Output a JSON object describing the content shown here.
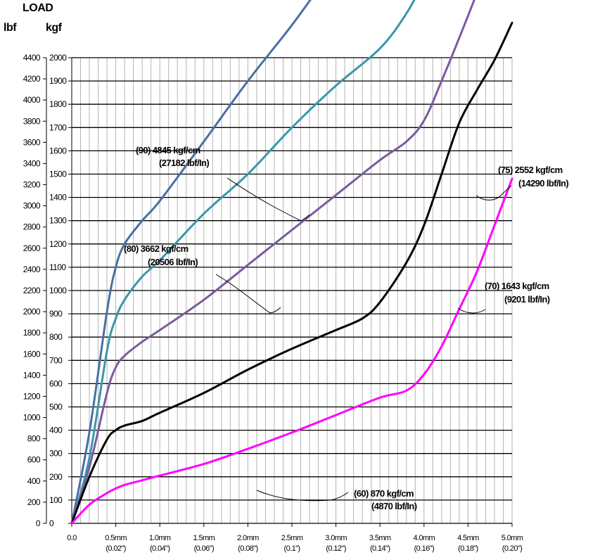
{
  "chart_data": {
    "type": "line",
    "title": "LOAD",
    "ylabel_left": "lbf",
    "ylabel_right": "kgf",
    "xlim": [
      0,
      5.0
    ],
    "ylim_kgf": [
      0,
      2000
    ],
    "ylim_lbf": [
      0,
      4400
    ],
    "grid": true,
    "x_ticks": [
      {
        "value": 0.0,
        "label": "0.0",
        "label2": ""
      },
      {
        "value": 0.5,
        "label": "0.5mm",
        "label2": "(0.02\")"
      },
      {
        "value": 1.0,
        "label": "1.0mm",
        "label2": "(0.04\")"
      },
      {
        "value": 1.5,
        "label": "1.5mm",
        "label2": "(0.06\")"
      },
      {
        "value": 2.0,
        "label": "2.0mm",
        "label2": "(0.08\")"
      },
      {
        "value": 2.5,
        "label": "2.5mm",
        "label2": "(0.1\")"
      },
      {
        "value": 3.0,
        "label": "3.0mm",
        "label2": "(0.12\")"
      },
      {
        "value": 3.5,
        "label": "3.5mm",
        "label2": "(0.14\")"
      },
      {
        "value": 4.0,
        "label": "4.0mm",
        "label2": "(0.16\")"
      },
      {
        "value": 4.5,
        "label": "4.5mm",
        "label2": "(0.18\")"
      },
      {
        "value": 5.0,
        "label": "5.0mm",
        "label2": "(0.20\")"
      }
    ],
    "y_ticks_kgf": [
      0,
      100,
      200,
      300,
      400,
      500,
      600,
      700,
      800,
      900,
      1000,
      1100,
      1200,
      1300,
      1400,
      1500,
      1600,
      1700,
      1800,
      1900,
      2000
    ],
    "y_ticks_lbf": [
      0,
      200,
      400,
      600,
      800,
      1000,
      1200,
      1400,
      1600,
      1800,
      2000,
      2200,
      2400,
      2600,
      2800,
      3000,
      3200,
      3400,
      3600,
      3800,
      4000,
      4200,
      4400
    ],
    "series": [
      {
        "name": "(90)",
        "color": "#4a6fa5",
        "x": [
          0,
          0.2,
          0.4,
          0.5,
          0.6,
          0.8,
          1.0,
          1.5,
          2.0,
          2.5,
          3.0,
          3.5,
          3.8,
          4.0,
          4.27
        ],
        "y": [
          0,
          390,
          910,
          1100,
          1200,
          1300,
          1385,
          1640,
          1900,
          2140,
          2400,
          2640,
          2790,
          2930,
          3200
        ]
      },
      {
        "name": "(80)",
        "color": "#3a97a8",
        "x": [
          0,
          0.2,
          0.4,
          0.5,
          0.6,
          0.8,
          1.0,
          1.5,
          2.0,
          2.5,
          3.0,
          3.5,
          3.8,
          4.0,
          4.2,
          4.5,
          4.77
        ],
        "y": [
          0,
          280,
          740,
          880,
          960,
          1060,
          1130,
          1330,
          1500,
          1700,
          1880,
          2040,
          2190,
          2330,
          2480,
          2700,
          2960
        ]
      },
      {
        "name": "(75)",
        "color": "#7c5aa0",
        "x": [
          0,
          0.2,
          0.4,
          0.5,
          0.6,
          0.8,
          1.0,
          1.5,
          2.0,
          2.5,
          3.0,
          3.5,
          3.8,
          4.0,
          4.2,
          4.5,
          4.8,
          5.0
        ],
        "y": [
          0,
          240,
          560,
          670,
          720,
          780,
          830,
          960,
          1110,
          1260,
          1410,
          1560,
          1640,
          1730,
          1900,
          2180,
          2470,
          2650
        ]
      },
      {
        "name": "(70)",
        "color": "#000000",
        "x": [
          0,
          0.2,
          0.4,
          0.5,
          0.6,
          0.8,
          1.0,
          1.5,
          2.0,
          2.5,
          3.0,
          3.3,
          3.5,
          3.8,
          4.0,
          4.2,
          4.4,
          4.6,
          4.8,
          5.0
        ],
        "y": [
          0,
          200,
          360,
          400,
          420,
          440,
          475,
          560,
          660,
          750,
          830,
          880,
          950,
          1120,
          1280,
          1500,
          1720,
          1860,
          1990,
          2150
        ]
      },
      {
        "name": "(60)",
        "color": "#ff00ff",
        "x": [
          0,
          0.2,
          0.4,
          0.5,
          0.6,
          0.8,
          1.0,
          1.5,
          2.0,
          2.5,
          3.0,
          3.5,
          3.8,
          4.0,
          4.2,
          4.4,
          4.6,
          4.8,
          5.0
        ],
        "y": [
          0,
          80,
          130,
          150,
          165,
          185,
          205,
          255,
          320,
          390,
          465,
          540,
          570,
          640,
          760,
          920,
          1080,
          1280,
          1480
        ]
      }
    ],
    "annotations": [
      {
        "line1": "(90) 4845 kgf/cm",
        "line2": "(27182 lbf/In)"
      },
      {
        "line1": "(80) 3662 kgf/cm",
        "line2": "(20506 lbf/In)"
      },
      {
        "line1": "(75) 2552 kgf/cm",
        "line2": "(14290 lbf/In)"
      },
      {
        "line1": "(70) 1643 kgf/cm",
        "line2": "(9201 lbf/In)"
      },
      {
        "line1": "(60) 870 kgf/cm",
        "line2": "(4870 lbf/In)"
      }
    ]
  }
}
